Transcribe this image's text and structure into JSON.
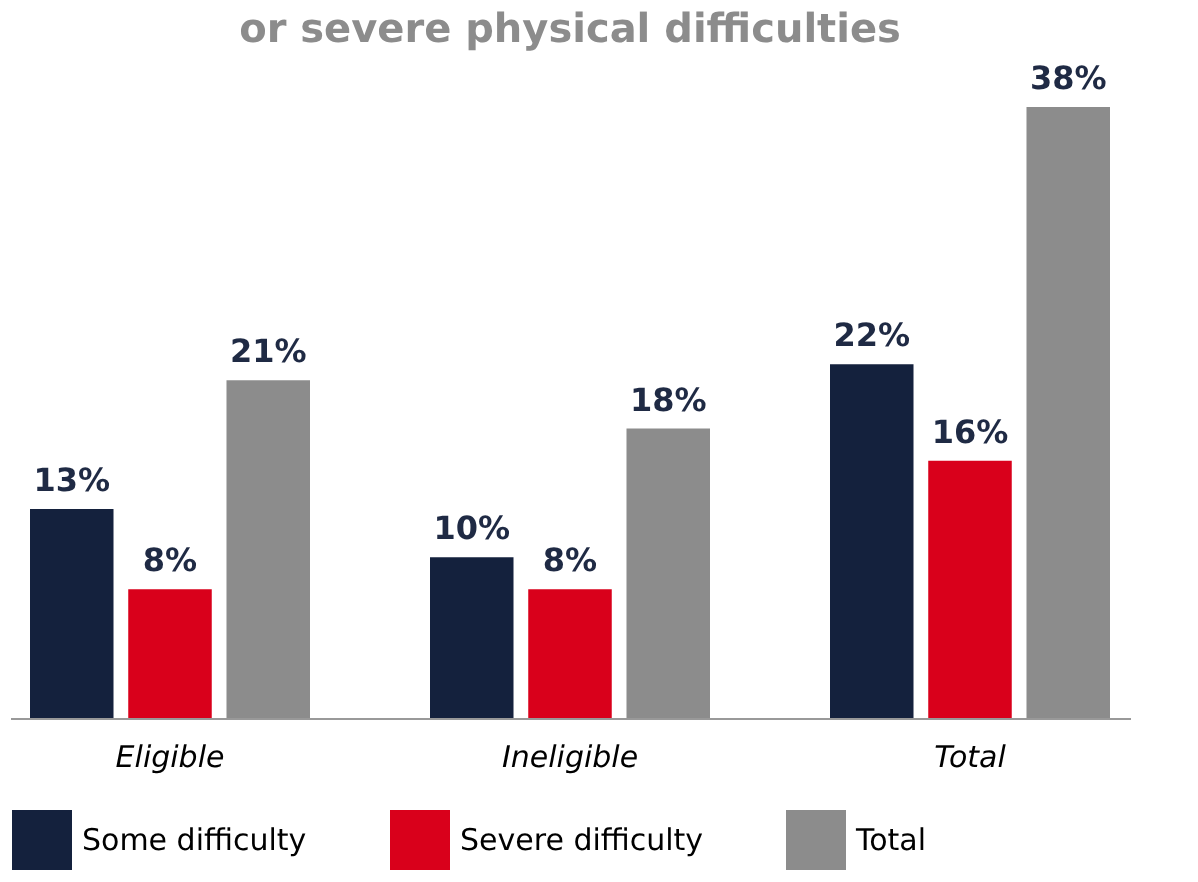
{
  "chart_data": {
    "type": "bar",
    "title": "or severe physical difficulties",
    "categories": [
      "Eligible",
      "Ineligible",
      "Total"
    ],
    "series": [
      {
        "name": "Some difficulty",
        "color": "#14213d",
        "values": [
          13,
          10,
          22
        ],
        "value_labels": [
          "13%",
          "10%",
          "22%"
        ]
      },
      {
        "name": "Severe difficulty",
        "color": "#d9001b",
        "values": [
          8,
          8,
          16
        ],
        "value_labels": [
          "8%",
          "8%",
          "16%"
        ]
      },
      {
        "name": "Total",
        "color": "#8c8c8c",
        "values": [
          21,
          18,
          38
        ],
        "value_labels": [
          "21%",
          "18%",
          "38%"
        ]
      }
    ],
    "legend": "bottom",
    "grid": false
  }
}
